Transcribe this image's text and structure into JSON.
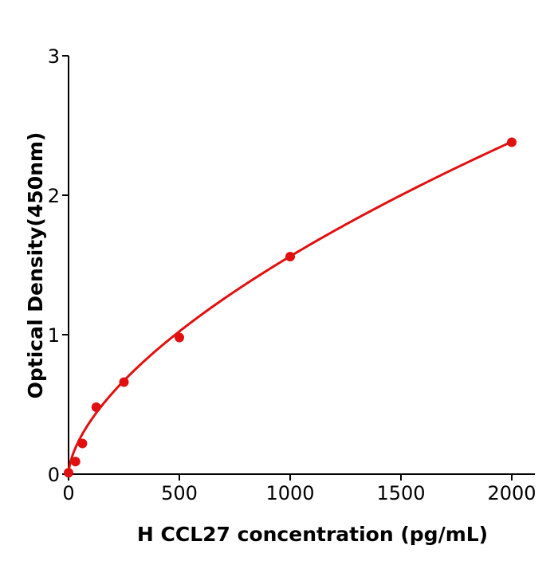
{
  "chart_data": {
    "type": "scatter",
    "title": "",
    "xlabel": "H  CCL27 concentration (pg/mL)",
    "ylabel": "Optical Density(450nm)",
    "xlim": [
      0,
      2100
    ],
    "ylim": [
      0,
      3
    ],
    "xticks": [
      "0",
      "500",
      "1000",
      "1500",
      "2000"
    ],
    "yticks": [
      "0",
      "1",
      "2",
      "3"
    ],
    "grid": false,
    "color": "#e01010",
    "points": [
      {
        "x": 0,
        "y": 0.01
      },
      {
        "x": 31.25,
        "y": 0.09
      },
      {
        "x": 62.5,
        "y": 0.22
      },
      {
        "x": 125,
        "y": 0.48
      },
      {
        "x": 250,
        "y": 0.66
      },
      {
        "x": 500,
        "y": 0.98
      },
      {
        "x": 1000,
        "y": 1.56
      },
      {
        "x": 2000,
        "y": 2.38
      }
    ],
    "fit_curve": "smooth fitted standard curve through points"
  }
}
